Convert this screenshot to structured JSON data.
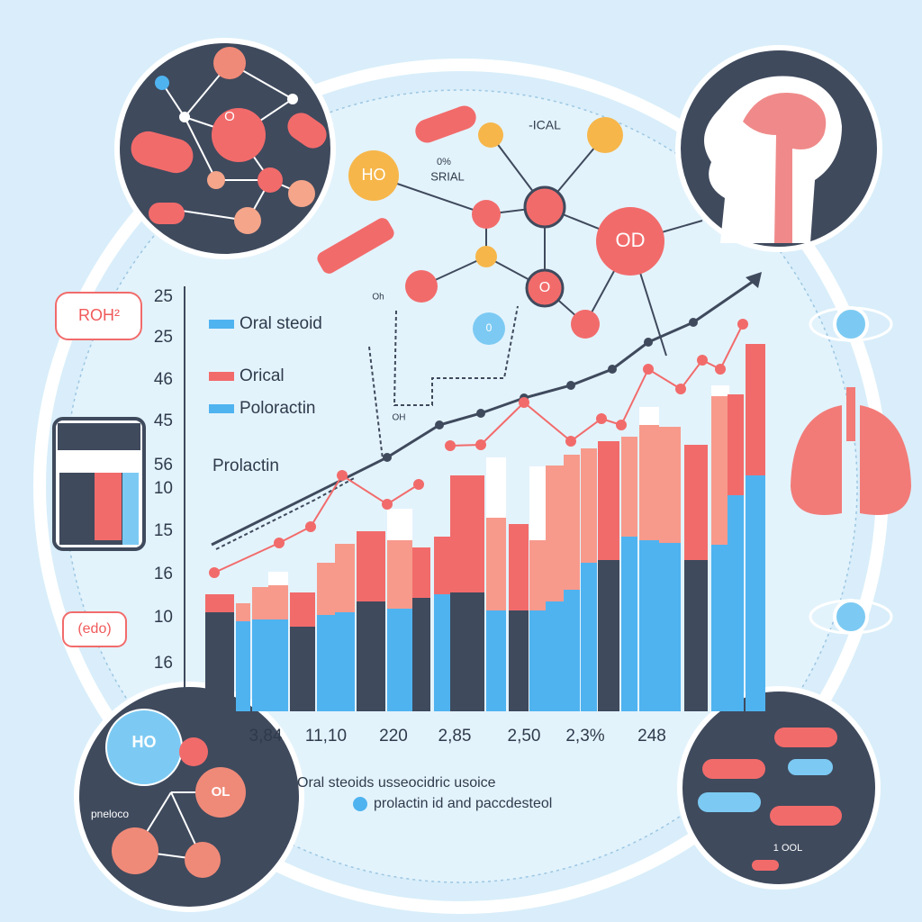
{
  "labels": {
    "roh": "ROH²",
    "ado": "(edo)"
  },
  "legend": {
    "items": [
      "Oral steoid",
      "Orical",
      "Poloractin"
    ],
    "title": "Prolactin"
  },
  "axis": {
    "left": [
      "25",
      "25",
      "46",
      "45",
      "56",
      "10",
      "15",
      "16",
      "10",
      "16"
    ],
    "bottom": [
      "3,84",
      "11,10",
      "220",
      "2,85",
      "2,50",
      "2,3%",
      "248"
    ]
  },
  "caption": {
    "line1": "Oral steoids usseocidric usoice",
    "line2": "prolactin id and paccdesteol"
  },
  "molecule": {
    "ho": "HO",
    "srial_top": "0%",
    "srial": "SRIAL",
    "ical": "-ICAL",
    "od": "OD",
    "o_lower": "O",
    "o_blue": "0",
    "oh_right": "Oh",
    "oh_left": "OH"
  },
  "top_left": {
    "o": "O"
  },
  "bottom_left": {
    "ho": "HO",
    "ol": "OL",
    "name": "pneloco"
  },
  "bottom_right": {
    "label": "1 OOL"
  }
}
